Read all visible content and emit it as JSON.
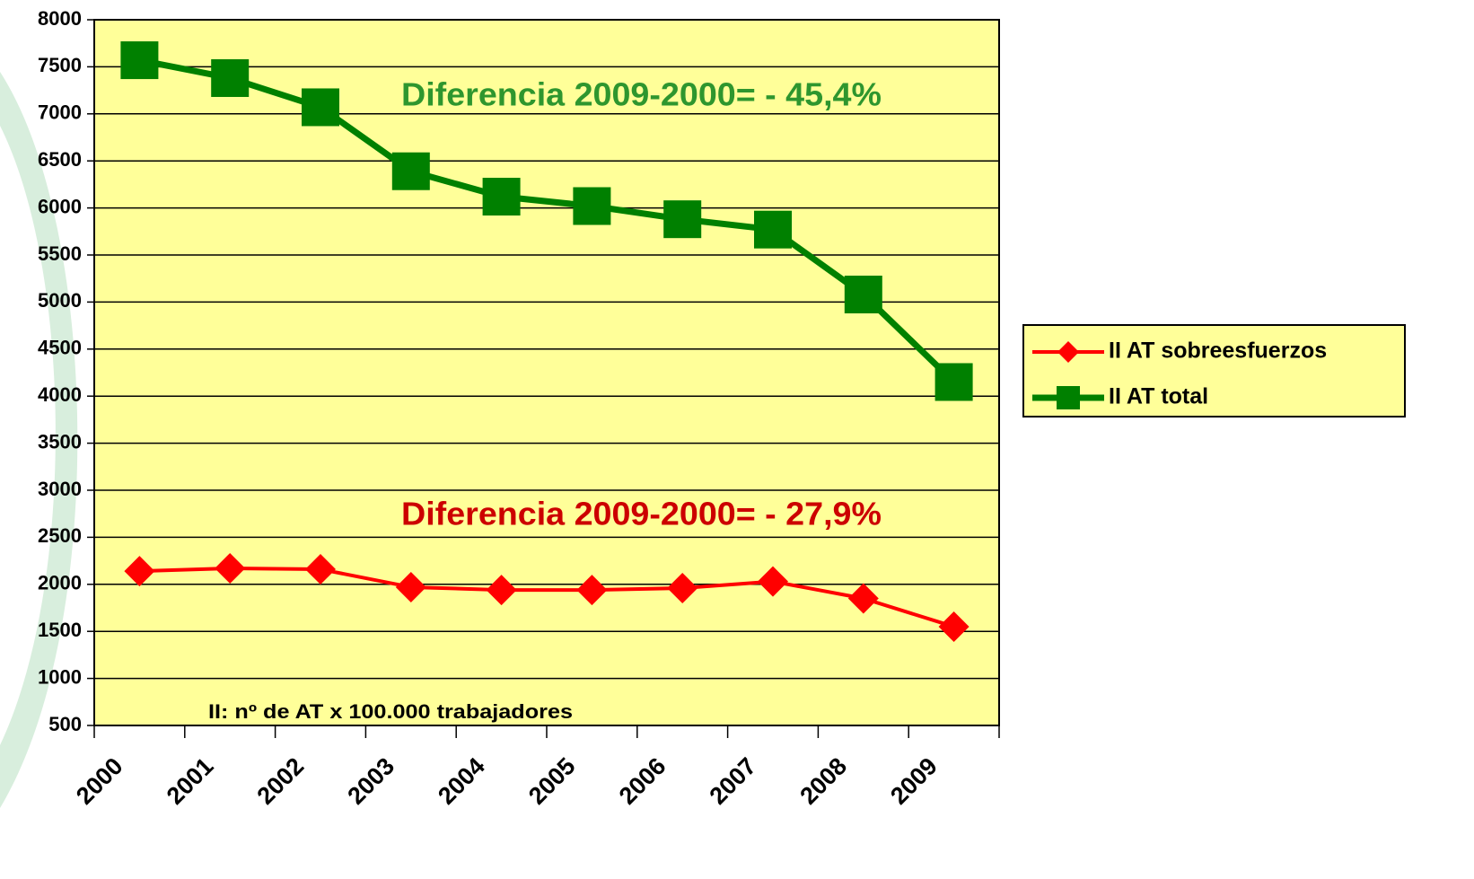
{
  "chart_data": {
    "type": "line",
    "categories": [
      "2000",
      "2001",
      "2002",
      "2003",
      "2004",
      "2005",
      "2006",
      "2007",
      "2008",
      "2009"
    ],
    "series": [
      {
        "name": "II AT sobreesfuerzos",
        "color": "#ff0000",
        "marker": "diamond",
        "values": [
          2140,
          2170,
          2160,
          1970,
          1940,
          1940,
          1960,
          2030,
          1850,
          1550
        ]
      },
      {
        "name": "II AT total",
        "color": "#008000",
        "marker": "square",
        "values": [
          7570,
          7380,
          7070,
          6390,
          6120,
          6020,
          5880,
          5770,
          5080,
          4150
        ]
      }
    ],
    "annotations": [
      {
        "text": "Diferencia 2009-2000= - 45,4%",
        "color": "#2e962e"
      },
      {
        "text": "Diferencia 2009-2000= - 27,9%",
        "color": "#cc0000"
      },
      {
        "text": "II: nº de AT x 100.000 trabajadores",
        "color": "#000000"
      }
    ],
    "ylim": [
      500,
      8000
    ],
    "yticks": [
      500,
      1000,
      1500,
      2000,
      2500,
      3000,
      3500,
      4000,
      4500,
      5000,
      5500,
      6000,
      6500,
      7000,
      7500,
      8000
    ],
    "grid": true,
    "plot_background": "#ffff99",
    "legend": "right"
  }
}
